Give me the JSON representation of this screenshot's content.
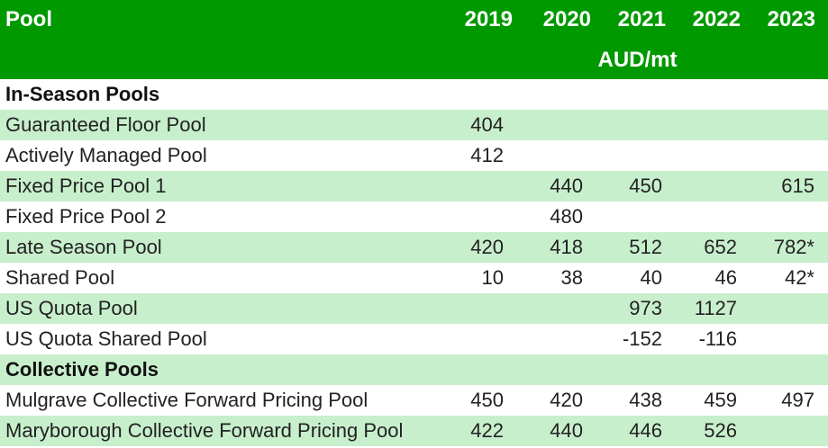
{
  "header": {
    "pool_label": "Pool",
    "years": [
      "2019",
      "2020",
      "2021",
      "2022",
      "2023"
    ],
    "unit": "AUD/mt"
  },
  "rows": [
    {
      "label": "In-Season Pools",
      "section": true,
      "values": [
        "",
        "",
        "",
        "",
        ""
      ]
    },
    {
      "label": "Guaranteed Floor Pool",
      "values": [
        "404",
        "",
        "",
        "",
        ""
      ]
    },
    {
      "label": "Actively Managed Pool",
      "values": [
        "412",
        "",
        "",
        "",
        ""
      ]
    },
    {
      "label": "Fixed Price Pool 1",
      "values": [
        "",
        "440",
        "450",
        "",
        "615"
      ]
    },
    {
      "label": "Fixed Price Pool 2",
      "values": [
        "",
        "480",
        "",
        "",
        ""
      ]
    },
    {
      "label": "Late Season Pool",
      "values": [
        "420",
        "418",
        "512",
        "652",
        "782*"
      ]
    },
    {
      "label": "Shared Pool",
      "values": [
        "10",
        "38",
        "40",
        "46",
        "42*"
      ]
    },
    {
      "label": "US Quota Pool",
      "values": [
        "",
        "",
        "973",
        "1127",
        ""
      ]
    },
    {
      "label": "US Quota Shared Pool",
      "values": [
        "",
        "",
        "-152",
        "-116",
        ""
      ]
    },
    {
      "label": "Collective Pools",
      "section": true,
      "values": [
        "",
        "",
        "",
        "",
        ""
      ]
    },
    {
      "label": "Mulgrave Collective Forward Pricing Pool",
      "values": [
        "450",
        "420",
        "438",
        "459",
        "497"
      ]
    },
    {
      "label": "Maryborough Collective Forward Pricing Pool",
      "values": [
        "422",
        "440",
        "446",
        "526",
        ""
      ]
    }
  ],
  "colors": {
    "header_bg": "#009900",
    "stripe": "#c8efcc",
    "plain": "#ffffff"
  }
}
